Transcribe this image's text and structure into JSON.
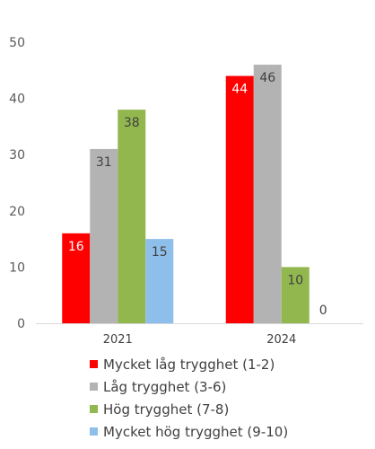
{
  "chart_data": {
    "type": "bar",
    "categories": [
      "2021",
      "2024"
    ],
    "ylim": [
      0,
      50
    ],
    "yticks": [
      0,
      10,
      20,
      30,
      40,
      50
    ],
    "grid": false,
    "legend_position": "bottom",
    "series": [
      {
        "name": "Mycket låg trygghet (1-2)",
        "color": "#ff0000",
        "values": [
          16,
          44
        ],
        "label_color": "#ffffff"
      },
      {
        "name": "Låg trygghet (3-6)",
        "color": "#b3b3b3",
        "values": [
          31,
          46
        ],
        "label_color": "#404040"
      },
      {
        "name": "Hög trygghet (7-8)",
        "color": "#92b74f",
        "values": [
          38,
          10
        ],
        "label_color": "#404040"
      },
      {
        "name": "Mycket hög trygghet (9-10)",
        "color": "#8ebfeb",
        "values": [
          15,
          0
        ],
        "label_color": "#404040"
      }
    ]
  }
}
